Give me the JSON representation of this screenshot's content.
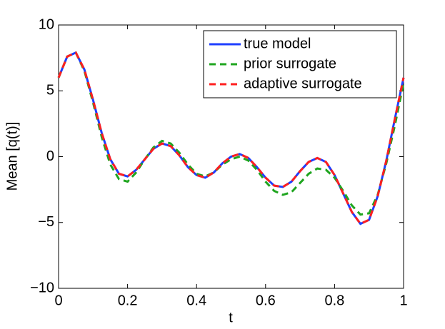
{
  "chart_data": {
    "type": "line",
    "x_label": "t",
    "y_label": "Mean [q(t)]",
    "x": [
      0,
      0.025,
      0.05,
      0.075,
      0.1,
      0.125,
      0.15,
      0.175,
      0.2,
      0.225,
      0.25,
      0.275,
      0.3,
      0.325,
      0.35,
      0.375,
      0.4,
      0.425,
      0.45,
      0.475,
      0.5,
      0.525,
      0.55,
      0.575,
      0.6,
      0.625,
      0.65,
      0.675,
      0.7,
      0.725,
      0.75,
      0.775,
      0.8,
      0.825,
      0.85,
      0.875,
      0.9,
      0.925,
      0.95,
      0.975,
      1.0
    ],
    "series": [
      {
        "name": "true model",
        "color": "#1f3fff",
        "dash": "solid",
        "values": [
          6.0,
          7.6,
          7.9,
          6.6,
          4.3,
          1.8,
          -0.2,
          -1.3,
          -1.5,
          -1.0,
          -0.2,
          0.6,
          1.0,
          0.8,
          0.1,
          -0.8,
          -1.4,
          -1.6,
          -1.2,
          -0.5,
          0.0,
          0.2,
          -0.1,
          -0.8,
          -1.6,
          -2.2,
          -2.3,
          -1.9,
          -1.1,
          -0.4,
          -0.1,
          -0.4,
          -1.4,
          -2.8,
          -4.2,
          -5.1,
          -4.8,
          -3.0,
          -0.3,
          2.9,
          6.0
        ]
      },
      {
        "name": "prior surrogate",
        "color": "#1fa51f",
        "dash": "dashed",
        "values": [
          6.0,
          7.6,
          7.9,
          6.5,
          4.1,
          1.5,
          -0.6,
          -1.7,
          -1.9,
          -1.2,
          -0.2,
          0.7,
          1.2,
          1.0,
          0.3,
          -0.6,
          -1.3,
          -1.5,
          -1.2,
          -0.6,
          -0.2,
          0.0,
          -0.3,
          -1.0,
          -1.9,
          -2.6,
          -2.9,
          -2.7,
          -2.0,
          -1.3,
          -0.9,
          -1.0,
          -1.6,
          -2.6,
          -3.7,
          -4.4,
          -4.3,
          -2.9,
          -0.5,
          2.4,
          5.6
        ]
      },
      {
        "name": "adaptive surrogate",
        "color": "#ff1f1f",
        "dash": "dashed",
        "values": [
          6.0,
          7.6,
          7.9,
          6.6,
          4.3,
          1.8,
          -0.2,
          -1.3,
          -1.5,
          -1.0,
          -0.2,
          0.6,
          1.0,
          0.8,
          0.1,
          -0.8,
          -1.4,
          -1.6,
          -1.2,
          -0.5,
          0.0,
          0.2,
          -0.1,
          -0.8,
          -1.6,
          -2.2,
          -2.3,
          -1.9,
          -1.1,
          -0.4,
          -0.1,
          -0.4,
          -1.4,
          -2.8,
          -4.2,
          -5.1,
          -4.8,
          -3.0,
          -0.3,
          2.9,
          6.0
        ]
      }
    ],
    "xlim": [
      0,
      1
    ],
    "xticks": [
      0,
      0.2,
      0.4,
      0.6,
      0.8,
      1
    ],
    "ylim": [
      -10,
      10
    ],
    "yticks": [
      {
        "value": -10,
        "label": "−10"
      },
      {
        "value": -5,
        "label": "−5"
      },
      0,
      5,
      10
    ],
    "grid": false,
    "legend": "upper right"
  }
}
